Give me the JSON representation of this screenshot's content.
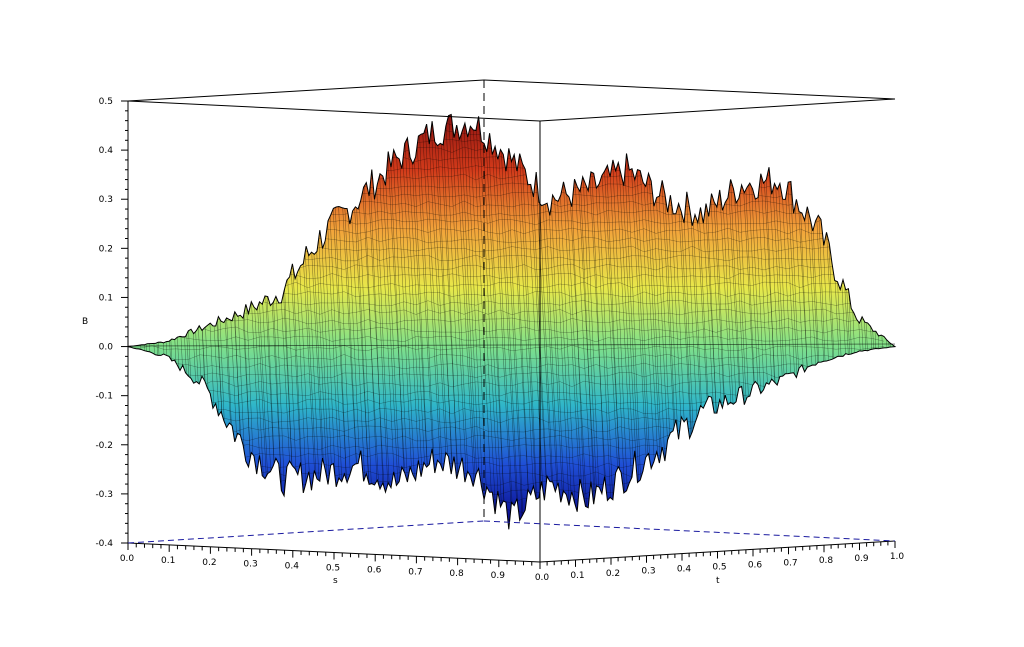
{
  "chart_data": {
    "type": "surface",
    "title": "",
    "xlabel": "s",
    "ylabel": "t",
    "zlabel": "B",
    "xlim": [
      0.0,
      1.0
    ],
    "ylim": [
      0.0,
      1.0
    ],
    "zlim": [
      -0.4,
      0.5
    ],
    "x_ticks": [
      "0.0",
      "0.1",
      "0.2",
      "0.3",
      "0.4",
      "0.5",
      "0.6",
      "0.7",
      "0.8",
      "0.9"
    ],
    "y_ticks": [
      "0.0",
      "0.1",
      "0.2",
      "0.3",
      "0.4",
      "0.5",
      "0.6",
      "0.7",
      "0.8",
      "0.9",
      "1.0"
    ],
    "z_ticks": [
      "0.5",
      "0.4",
      "0.3",
      "0.2",
      "0.1",
      "0.0",
      "-0.1",
      "-0.2",
      "-0.3",
      "-0.4"
    ],
    "z_tick_values": [
      0.5,
      0.4,
      0.3,
      0.2,
      0.1,
      0.0,
      -0.1,
      -0.2,
      -0.3,
      -0.4
    ],
    "surface_upper_profile": [
      [
        0.0,
        0.0
      ],
      [
        0.05,
        0.01
      ],
      [
        0.1,
        0.04
      ],
      [
        0.15,
        0.07
      ],
      [
        0.2,
        0.11
      ],
      [
        0.25,
        0.22
      ],
      [
        0.3,
        0.3
      ],
      [
        0.35,
        0.38
      ],
      [
        0.4,
        0.44
      ],
      [
        0.45,
        0.46
      ],
      [
        0.5,
        0.38
      ],
      [
        0.55,
        0.3
      ],
      [
        0.6,
        0.32
      ],
      [
        0.65,
        0.36
      ],
      [
        0.7,
        0.3
      ],
      [
        0.75,
        0.27
      ],
      [
        0.8,
        0.33
      ],
      [
        0.85,
        0.34
      ],
      [
        0.9,
        0.24
      ],
      [
        0.95,
        0.06
      ],
      [
        1.0,
        0.0
      ]
    ],
    "surface_lower_profile": [
      [
        0.0,
        0.0
      ],
      [
        0.05,
        -0.02
      ],
      [
        0.1,
        -0.08
      ],
      [
        0.15,
        -0.2
      ],
      [
        0.2,
        -0.27
      ],
      [
        0.25,
        -0.26
      ],
      [
        0.3,
        -0.24
      ],
      [
        0.35,
        -0.28
      ],
      [
        0.4,
        -0.23
      ],
      [
        0.45,
        -0.25
      ],
      [
        0.5,
        -0.35
      ],
      [
        0.55,
        -0.28
      ],
      [
        0.6,
        -0.31
      ],
      [
        0.65,
        -0.26
      ],
      [
        0.7,
        -0.2
      ],
      [
        0.75,
        -0.13
      ],
      [
        0.8,
        -0.1
      ],
      [
        0.85,
        -0.07
      ],
      [
        0.9,
        -0.03
      ],
      [
        0.95,
        -0.01
      ],
      [
        1.0,
        0.0
      ]
    ],
    "colormap": [
      "#0a0a8c",
      "#1f4fd6",
      "#2fb6c9",
      "#7fe08a",
      "#e8e84a",
      "#f2a23a",
      "#d23a1a",
      "#8a1010"
    ],
    "grid": false,
    "legend": "none"
  }
}
